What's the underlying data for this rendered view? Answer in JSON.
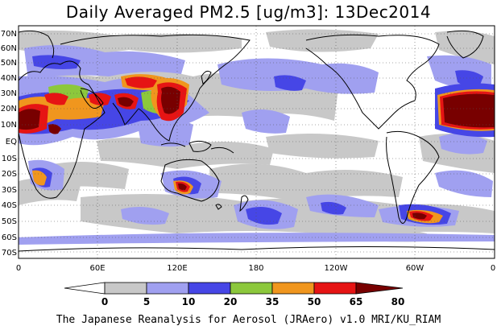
{
  "title": "Daily Averaged PM2.5 [ug/m3]: 13Dec2014",
  "footer": "The Japanese Reanalysis for Aerosol (JRAero) v1.0 MRI/KU_RIAM",
  "map": {
    "lat_labels": [
      "70N",
      "60N",
      "50N",
      "40N",
      "30N",
      "20N",
      "10N",
      "EQ",
      "10S",
      "20S",
      "30S",
      "40S",
      "50S",
      "60S",
      "70S"
    ],
    "lon_labels": [
      "0",
      "60E",
      "120E",
      "180",
      "120W",
      "60W",
      "0"
    ]
  },
  "colorbar": {
    "tick_labels": [
      "0",
      "5",
      "10",
      "20",
      "35",
      "50",
      "65",
      "80"
    ],
    "colors": [
      "#ffffff",
      "#c8c8c8",
      "#a0a0f0",
      "#4646e6",
      "#8cc83c",
      "#f0961e",
      "#e61414",
      "#780000"
    ]
  }
}
